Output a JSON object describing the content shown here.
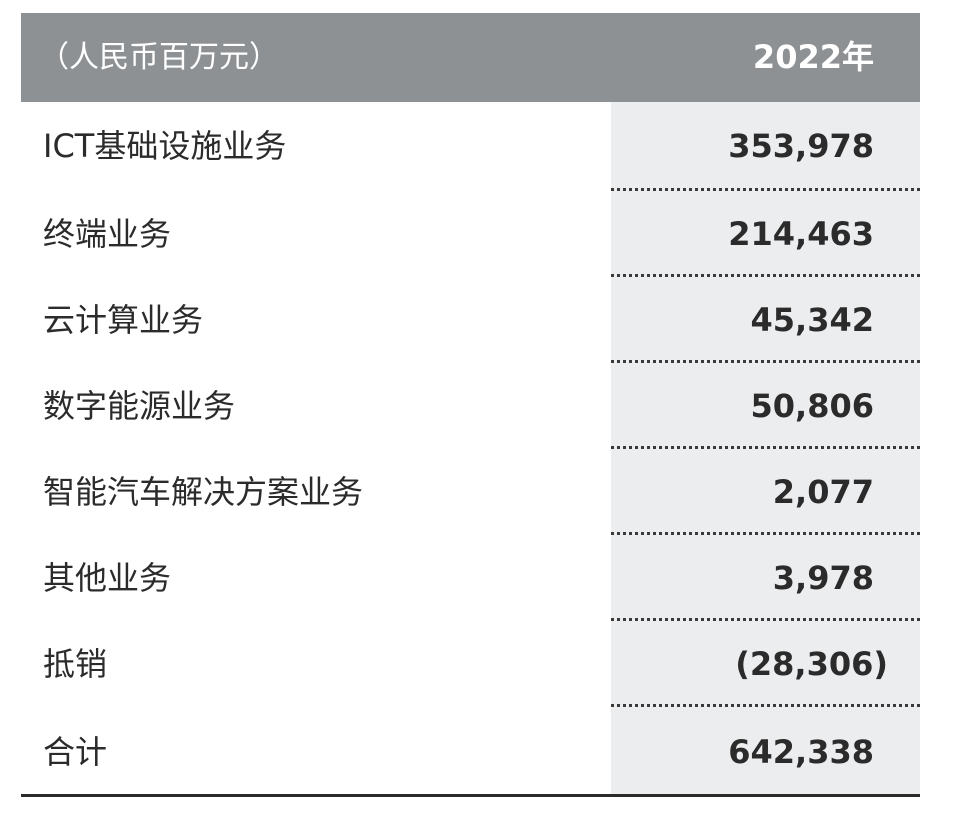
{
  "header": {
    "unit_label": "（人民币百万元）",
    "year_label": "2022年"
  },
  "rows": [
    {
      "label": "ICT基础设施业务",
      "value": "353,978"
    },
    {
      "label": "终端业务",
      "value": "214,463"
    },
    {
      "label": "云计算业务",
      "value": "45,342"
    },
    {
      "label": "数字能源业务",
      "value": "50,806"
    },
    {
      "label": "智能汽车解决方案业务",
      "value": "2,077"
    },
    {
      "label": "其他业务",
      "value": "3,978"
    },
    {
      "label": "抵销",
      "value": "(28,306)"
    }
  ],
  "total": {
    "label": "合计",
    "value": "642,338"
  }
}
